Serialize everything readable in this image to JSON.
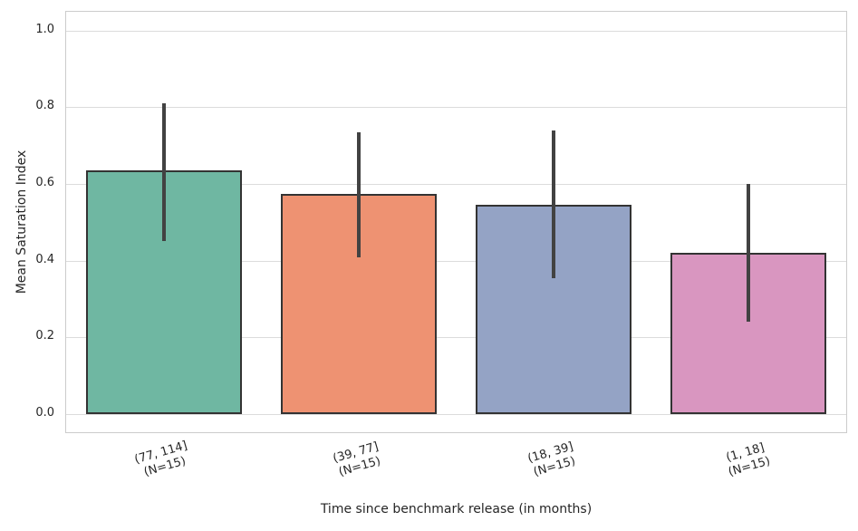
{
  "chart_data": {
    "type": "bar",
    "title": "",
    "xlabel": "Time since benchmark release (in months)",
    "ylabel": "Mean Saturation Index",
    "categories": [
      [
        "(77, 114]",
        "(N=15)"
      ],
      [
        "(39, 77]",
        "(N=15)"
      ],
      [
        "(18, 39]",
        "(N=15)"
      ],
      [
        "(1, 18]",
        "(N=15)"
      ]
    ],
    "values": [
      0.635,
      0.575,
      0.545,
      0.42
    ],
    "error_bars": [
      [
        0.45,
        0.81
      ],
      [
        0.41,
        0.735
      ],
      [
        0.355,
        0.74
      ],
      [
        0.24,
        0.6
      ]
    ],
    "bar_colors": [
      "#6fb7a2",
      "#ee9272",
      "#94a3c5",
      "#d996c0"
    ],
    "bar_edge_color": "#333333",
    "error_color": "#424242",
    "yticks": [
      0.0,
      0.2,
      0.4,
      0.6,
      0.8,
      1.0
    ],
    "ytick_labels": [
      "0.0",
      "0.2",
      "0.4",
      "0.6",
      "0.8",
      "1.0"
    ],
    "ylim": [
      -0.047,
      1.049
    ],
    "bar_width_fraction": 0.8,
    "xtick_rotation_deg": 16,
    "grid": true,
    "legend": null
  }
}
